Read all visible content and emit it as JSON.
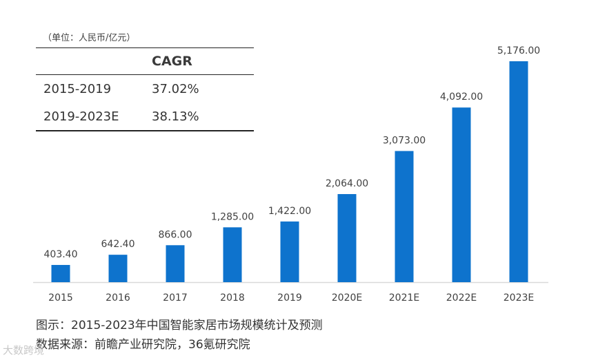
{
  "unit_label": "（单位：人民币/亿元）",
  "cagr_table": {
    "header": "CAGR",
    "rows": [
      {
        "period": "2015-2019",
        "rate": "37.02%"
      },
      {
        "period": "2019-2023E",
        "rate": "38.13%"
      }
    ]
  },
  "chart_data": {
    "type": "bar",
    "title": "2015-2023年中国智能家居市场规模统计及预测",
    "categories": [
      "2015",
      "2016",
      "2017",
      "2018",
      "2019",
      "2020E",
      "2021E",
      "2022E",
      "2023E"
    ],
    "values": [
      403.4,
      642.4,
      866.0,
      1285.0,
      1422.0,
      2064.0,
      3073.0,
      4092.0,
      5176.0
    ],
    "value_labels": [
      "403.40",
      "642.40",
      "866.00",
      "1,285.00",
      "1,422.00",
      "2,064.00",
      "3,073.00",
      "4,092.00",
      "5,176.00"
    ],
    "ylabel": "人民币/亿元",
    "ylim": [
      0,
      5176
    ],
    "bar_color": "#0e73cd",
    "axis_color": "#d9d9d9"
  },
  "caption_title": "图示：2015-2023年中国智能家居市场规模统计及预测",
  "caption_source": "数据来源：前瞻产业研究院，36氪研究院",
  "watermark": "大数跨境"
}
